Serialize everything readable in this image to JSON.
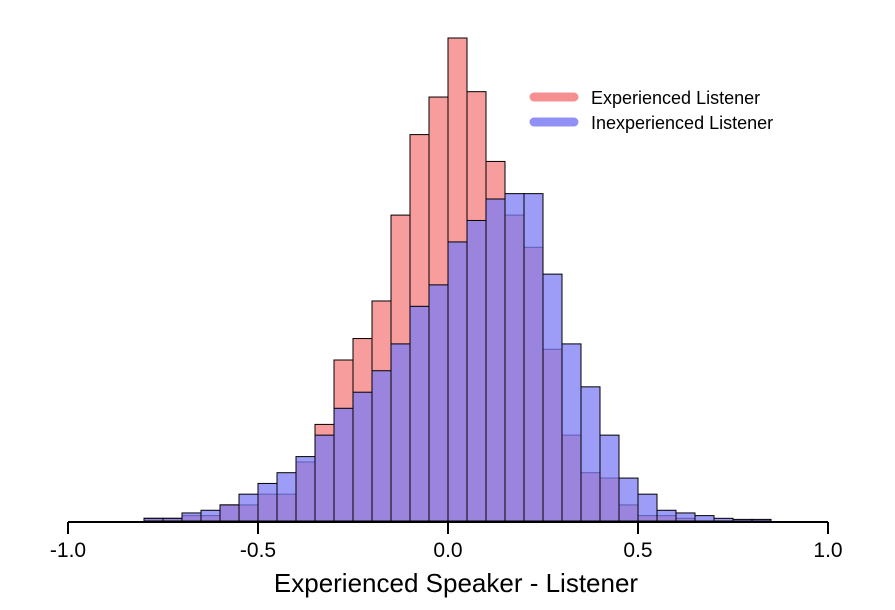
{
  "chart_data": {
    "type": "bar",
    "title": "",
    "xlabel": "Experienced Speaker - Listener",
    "ylabel": "",
    "xlim": [
      -1.0,
      1.0
    ],
    "xticks": [
      "-1.0",
      "-0.5",
      "0.0",
      "0.5",
      "1.0"
    ],
    "y_axis_shown": false,
    "grid": false,
    "legend_position": "top-right",
    "bin_width": 0.05,
    "bin_starts": [
      -0.85,
      -0.8,
      -0.75,
      -0.7,
      -0.65,
      -0.6,
      -0.55,
      -0.5,
      -0.45,
      -0.4,
      -0.35,
      -0.3,
      -0.25,
      -0.2,
      -0.15,
      -0.1,
      -0.05,
      0.0,
      0.05,
      0.1,
      0.15,
      0.2,
      0.25,
      0.3,
      0.35,
      0.4,
      0.45,
      0.5,
      0.55,
      0.6,
      0.65,
      0.7,
      0.75,
      0.8
    ],
    "series": [
      {
        "name": "Experienced Listener",
        "color": "#f47c7c",
        "values": [
          0,
          0.5,
          0.5,
          1,
          1,
          3,
          3,
          5,
          5,
          11,
          18,
          30,
          34,
          41,
          57,
          72,
          79,
          90,
          80,
          67,
          57,
          51,
          32,
          16,
          9,
          8,
          3,
          1,
          1,
          0.5,
          0,
          0,
          0,
          0
        ]
      },
      {
        "name": "Inexperienced Listener",
        "color": "#7c7cf4",
        "values": [
          0,
          0.5,
          0.5,
          1.5,
          2,
          3,
          5,
          7,
          9,
          12,
          16,
          21,
          24,
          28,
          33,
          40,
          44,
          52,
          56,
          60,
          61,
          61,
          46,
          33,
          25,
          16,
          8,
          5,
          2,
          1.5,
          1,
          0.5,
          0.3,
          0.3
        ]
      }
    ]
  }
}
